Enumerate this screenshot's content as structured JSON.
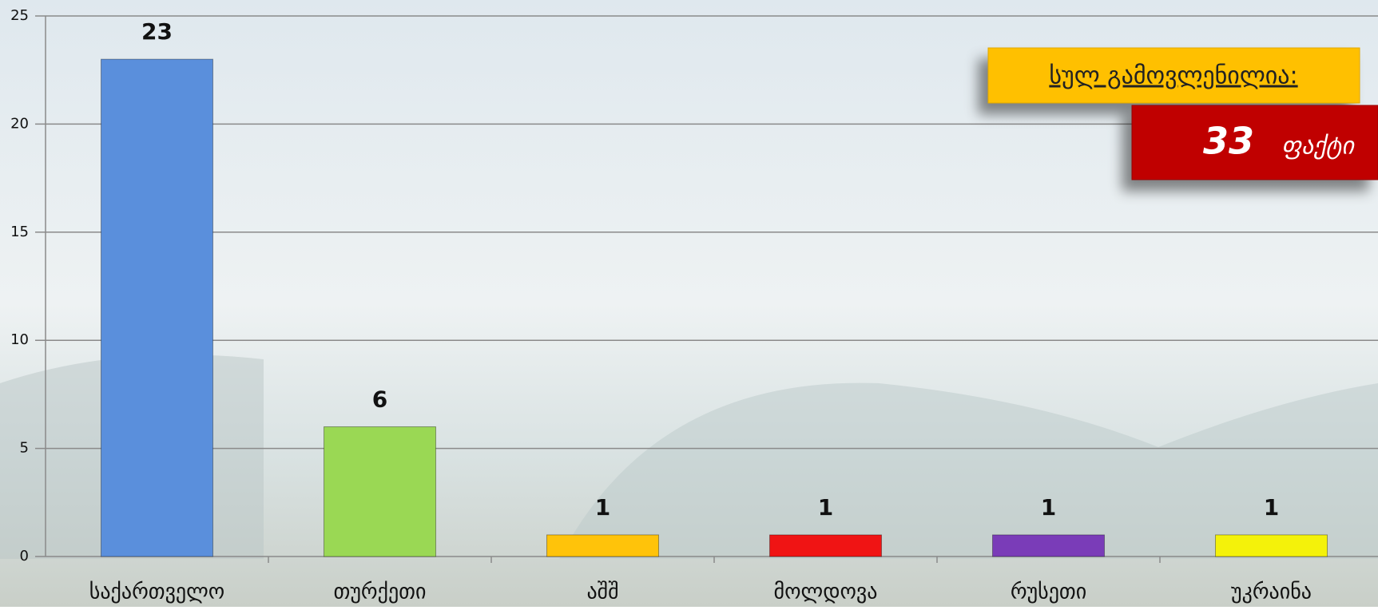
{
  "chart_data": {
    "type": "bar",
    "categories": [
      "საქართველო",
      "თურქეთი",
      "აშშ",
      "მოლდოვა",
      "რუსეთი",
      "უკრაინა"
    ],
    "values": [
      23,
      6,
      1,
      1,
      1,
      1
    ],
    "colors": [
      "#5a8fdc",
      "#9ad854",
      "#ffc30a",
      "#f01414",
      "#7a3cb8",
      "#f4f20a"
    ],
    "ylim": [
      0,
      25
    ],
    "yticks": [
      0,
      5,
      10,
      15,
      20,
      25
    ],
    "grid": true,
    "annotation": {
      "title": "სულ გამოვლენილია:",
      "value": 33,
      "unit": "ფაქტი"
    }
  }
}
